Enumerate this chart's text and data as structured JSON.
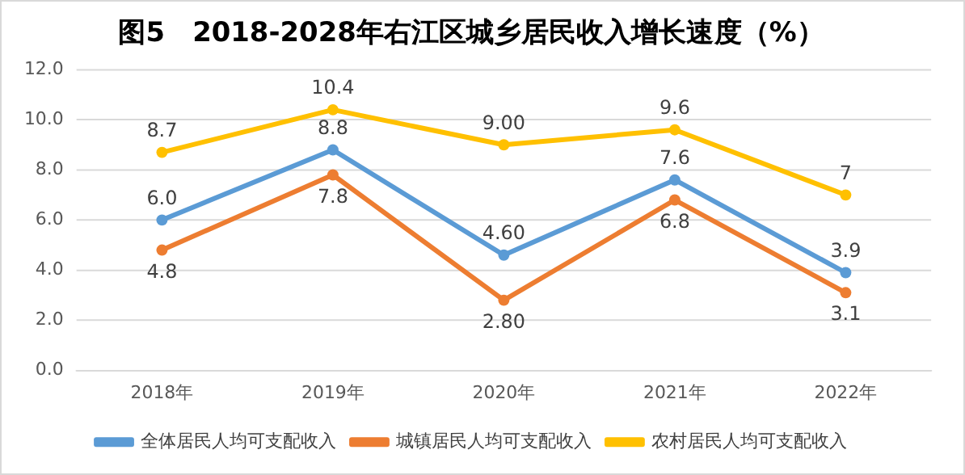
{
  "chart_data": {
    "type": "line",
    "title": "图5　2018-2028年右江区城乡居民收入增长速度（%）",
    "categories": [
      "2018年",
      "2019年",
      "2020年",
      "2021年",
      "2022年"
    ],
    "series": [
      {
        "name": "全体居民人均可支配收入",
        "color": "#5b9bd5",
        "values": [
          6.0,
          8.8,
          4.6,
          7.6,
          3.9
        ],
        "value_labels": [
          "6.0",
          "8.8",
          "4.60",
          "7.6",
          "3.9"
        ]
      },
      {
        "name": "城镇居民人均可支配收入",
        "color": "#ed7d31",
        "values": [
          4.8,
          7.8,
          2.8,
          6.8,
          3.1
        ],
        "value_labels": [
          "4.8",
          "7.8",
          "2.80",
          "6.8",
          "3.1"
        ]
      },
      {
        "name": "农村居民人均可支配收入",
        "color": "#ffc000",
        "values": [
          8.7,
          10.4,
          9.0,
          9.6,
          7
        ],
        "value_labels": [
          "8.7",
          "10.4",
          "9.00",
          "9.6",
          "7"
        ]
      }
    ],
    "ylim": [
      0,
      12
    ],
    "yticks": [
      {
        "value": 0,
        "label": "0.0"
      },
      {
        "value": 2,
        "label": "2.0"
      },
      {
        "value": 4,
        "label": "4.0"
      },
      {
        "value": 6,
        "label": "6.0"
      },
      {
        "value": 8,
        "label": "8.0"
      },
      {
        "value": 10,
        "label": "10.0"
      },
      {
        "value": 12,
        "label": "12.0"
      }
    ],
    "grid": "y",
    "legend": "bottom",
    "marker": "circle",
    "line_style": "solid"
  }
}
